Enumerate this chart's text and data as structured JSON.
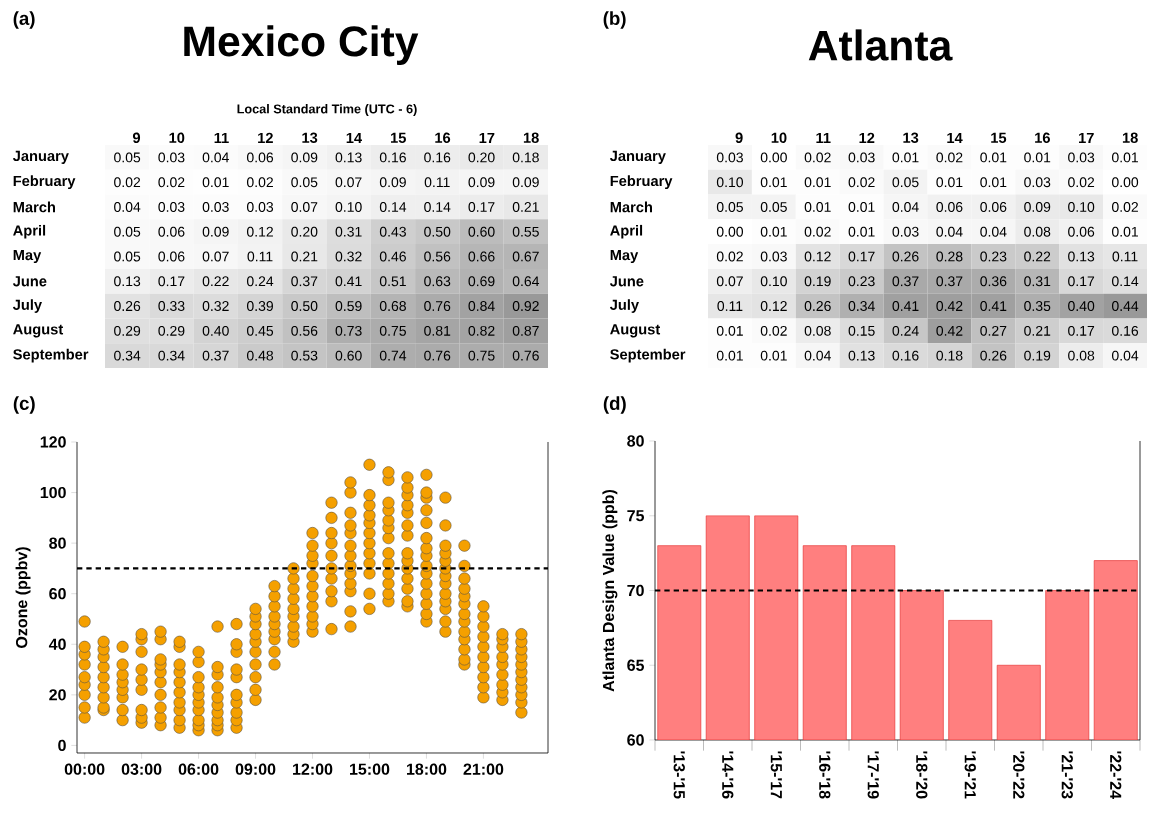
{
  "chart_data": [
    {
      "type": "heatmap",
      "title": "Mexico City",
      "xlabel": "Local Standard Time (UTC - 6)",
      "annotations": [
        "(a)"
      ],
      "color": "#999999",
      "categories": [
        "9",
        "10",
        "11",
        "12",
        "13",
        "14",
        "15",
        "16",
        "17",
        "18"
      ],
      "y_categories": [
        "January",
        "February",
        "March",
        "April",
        "May",
        "June",
        "July",
        "August",
        "September"
      ],
      "cells": [
        [
          0.05,
          0.03,
          0.04,
          0.06,
          0.09,
          0.13,
          0.16,
          0.16,
          0.2,
          0.18
        ],
        [
          0.02,
          0.02,
          0.01,
          0.02,
          0.05,
          0.07,
          0.09,
          0.11,
          0.09,
          0.09
        ],
        [
          0.04,
          0.03,
          0.03,
          0.03,
          0.07,
          0.1,
          0.14,
          0.14,
          0.17,
          0.21
        ],
        [
          0.05,
          0.06,
          0.09,
          0.12,
          0.2,
          0.31,
          0.43,
          0.5,
          0.6,
          0.55
        ],
        [
          0.05,
          0.06,
          0.07,
          0.11,
          0.21,
          0.32,
          0.46,
          0.56,
          0.66,
          0.67
        ],
        [
          0.13,
          0.17,
          0.22,
          0.24,
          0.37,
          0.41,
          0.51,
          0.63,
          0.69,
          0.64
        ],
        [
          0.26,
          0.33,
          0.32,
          0.39,
          0.5,
          0.59,
          0.68,
          0.76,
          0.84,
          0.92
        ],
        [
          0.29,
          0.29,
          0.4,
          0.45,
          0.56,
          0.73,
          0.75,
          0.81,
          0.82,
          0.87
        ],
        [
          0.34,
          0.34,
          0.37,
          0.48,
          0.53,
          0.6,
          0.74,
          0.76,
          0.75,
          0.76
        ]
      ],
      "cell_labels": [
        [
          "0.05",
          "0.03",
          "0.04",
          "0.06",
          "0.09",
          "0.13",
          "0.16",
          "0.16",
          "0.20",
          "0.18"
        ],
        [
          "0.02",
          "0.02",
          "0.01",
          "0.02",
          "0.05",
          "0.07",
          "0.09",
          "0.11",
          "0.09",
          "0.09"
        ],
        [
          "0.04",
          "0.03",
          "0.03",
          "0.03",
          "0.07",
          "0.10",
          "0.14",
          "0.14",
          "0.17",
          "0.21"
        ],
        [
          "0.05",
          "0.06",
          "0.09",
          "0.12",
          "0.20",
          "0.31",
          "0.43",
          "0.50",
          "0.60",
          "0.55"
        ],
        [
          "0.05",
          "0.06",
          "0.07",
          "0.11",
          "0.21",
          "0.32",
          "0.46",
          "0.56",
          "0.66",
          "0.67"
        ],
        [
          "0.13",
          "0.17",
          "0.22",
          "0.24",
          "0.37",
          "0.41",
          "0.51",
          "0.63",
          "0.69",
          "0.64"
        ],
        [
          "0.26",
          "0.33",
          "0.32",
          "0.39",
          "0.50",
          "0.59",
          "0.68",
          "0.76",
          "0.84",
          "0.92"
        ],
        [
          "0.29",
          "0.29",
          "0.40",
          "0.45",
          "0.56",
          "0.73",
          "0.75",
          "0.81",
          "0.82",
          "0.87"
        ],
        [
          "0.34",
          "0.34",
          "0.37",
          "0.48",
          "0.53",
          "0.60",
          "0.74",
          "0.76",
          "0.75",
          "0.76"
        ]
      ]
    },
    {
      "type": "heatmap",
      "title": "Atlanta",
      "annotations": [
        "(b)"
      ],
      "color": "#999999",
      "categories": [
        "9",
        "10",
        "11",
        "12",
        "13",
        "14",
        "15",
        "16",
        "17",
        "18"
      ],
      "y_categories": [
        "January",
        "February",
        "March",
        "April",
        "May",
        "June",
        "July",
        "August",
        "September"
      ],
      "cells": [
        [
          0.03,
          0.0,
          0.02,
          0.03,
          0.01,
          0.02,
          0.01,
          0.01,
          0.03,
          0.01
        ],
        [
          0.1,
          0.01,
          0.01,
          0.02,
          0.05,
          0.01,
          0.01,
          0.03,
          0.02,
          0.0
        ],
        [
          0.05,
          0.05,
          0.01,
          0.01,
          0.04,
          0.06,
          0.06,
          0.09,
          0.1,
          0.02
        ],
        [
          0.0,
          0.01,
          0.02,
          0.01,
          0.03,
          0.04,
          0.04,
          0.08,
          0.06,
          0.01
        ],
        [
          0.02,
          0.03,
          0.12,
          0.17,
          0.26,
          0.28,
          0.23,
          0.22,
          0.13,
          0.11
        ],
        [
          0.07,
          0.1,
          0.19,
          0.23,
          0.37,
          0.37,
          0.36,
          0.31,
          0.17,
          0.14
        ],
        [
          0.11,
          0.12,
          0.26,
          0.34,
          0.41,
          0.42,
          0.41,
          0.35,
          0.4,
          0.44
        ],
        [
          0.01,
          0.02,
          0.08,
          0.15,
          0.24,
          0.42,
          0.27,
          0.21,
          0.17,
          0.16
        ],
        [
          0.01,
          0.01,
          0.04,
          0.13,
          0.16,
          0.18,
          0.26,
          0.19,
          0.08,
          0.04
        ]
      ],
      "cell_labels": [
        [
          "0.03",
          "0.00",
          "0.02",
          "0.03",
          "0.01",
          "0.02",
          "0.01",
          "0.01",
          "0.03",
          "0.01"
        ],
        [
          "0.10",
          "0.01",
          "0.01",
          "0.02",
          "0.05",
          "0.01",
          "0.01",
          "0.03",
          "0.02",
          "0.00"
        ],
        [
          "0.05",
          "0.05",
          "0.01",
          "0.01",
          "0.04",
          "0.06",
          "0.06",
          "0.09",
          "0.10",
          "0.02"
        ],
        [
          "0.00",
          "0.01",
          "0.02",
          "0.01",
          "0.03",
          "0.04",
          "0.04",
          "0.08",
          "0.06",
          "0.01"
        ],
        [
          "0.02",
          "0.03",
          "0.12",
          "0.17",
          "0.26",
          "0.28",
          "0.23",
          "0.22",
          "0.13",
          "0.11"
        ],
        [
          "0.07",
          "0.10",
          "0.19",
          "0.23",
          "0.37",
          "0.37",
          "0.36",
          "0.31",
          "0.17",
          "0.14"
        ],
        [
          "0.11",
          "0.12",
          "0.26",
          "0.34",
          "0.41",
          "0.42",
          "0.41",
          "0.35",
          "0.40",
          "0.44"
        ],
        [
          "0.01",
          "0.02",
          "0.08",
          "0.15",
          "0.24",
          "0.42",
          "0.27",
          "0.21",
          "0.17",
          "0.16"
        ],
        [
          "0.01",
          "0.01",
          "0.04",
          "0.13",
          "0.16",
          "0.18",
          "0.26",
          "0.19",
          "0.08",
          "0.04"
        ]
      ]
    },
    {
      "type": "scatter",
      "ylabel": "Ozone (ppbv)",
      "annotations": [
        "(c)"
      ],
      "color": "#f5a000",
      "marker": "circle",
      "xlim": [
        -0.4,
        24.4
      ],
      "ylim": [
        -3,
        120
      ],
      "xticks": [
        {
          "value": 0,
          "label": "00:00"
        },
        {
          "value": 3,
          "label": "03:00"
        },
        {
          "value": 6,
          "label": "06:00"
        },
        {
          "value": 9,
          "label": "09:00"
        },
        {
          "value": 12,
          "label": "12:00"
        },
        {
          "value": 15,
          "label": "15:00"
        },
        {
          "value": 18,
          "label": "18:00"
        },
        {
          "value": 21,
          "label": "21:00"
        }
      ],
      "yticks": [
        0,
        20,
        40,
        60,
        80,
        100,
        120
      ],
      "ref_lines": [
        {
          "axis": "y",
          "value": 70,
          "line_style": "dashed",
          "color": "#000000"
        }
      ],
      "x": [
        0,
        0,
        0,
        0,
        0,
        0,
        0,
        0,
        0,
        1,
        1,
        1,
        1,
        1,
        1,
        1,
        1,
        1,
        2,
        2,
        2,
        2,
        2,
        2,
        2,
        2,
        3,
        3,
        3,
        3,
        3,
        3,
        3,
        3,
        3,
        4,
        4,
        4,
        4,
        4,
        4,
        4,
        4,
        4,
        4,
        5,
        5,
        5,
        5,
        5,
        5,
        5,
        5,
        5,
        5,
        6,
        6,
        6,
        6,
        6,
        6,
        6,
        6,
        6,
        6,
        7,
        7,
        7,
        7,
        7,
        7,
        7,
        7,
        7,
        7,
        8,
        8,
        8,
        8,
        8,
        8,
        8,
        8,
        8,
        8,
        9,
        9,
        9,
        9,
        9,
        9,
        9,
        9,
        9,
        9,
        10,
        10,
        10,
        10,
        10,
        10,
        10,
        10,
        10,
        11,
        11,
        11,
        11,
        11,
        11,
        11,
        11,
        11,
        12,
        12,
        12,
        12,
        12,
        12,
        12,
        12,
        12,
        12,
        12,
        13,
        13,
        13,
        13,
        13,
        13,
        13,
        13,
        13,
        13,
        14,
        14,
        14,
        14,
        14,
        14,
        14,
        14,
        14,
        14,
        14,
        14,
        14,
        15,
        15,
        15,
        15,
        15,
        15,
        15,
        15,
        15,
        15,
        15,
        15,
        16,
        16,
        16,
        16,
        16,
        16,
        16,
        16,
        16,
        16,
        16,
        16,
        16,
        17,
        17,
        17,
        17,
        17,
        17,
        17,
        17,
        17,
        17,
        17,
        17,
        17,
        17,
        18,
        18,
        18,
        18,
        18,
        18,
        18,
        18,
        18,
        18,
        18,
        18,
        18,
        18,
        18,
        19,
        19,
        19,
        19,
        19,
        19,
        19,
        19,
        19,
        19,
        19,
        19,
        19,
        20,
        20,
        20,
        20,
        20,
        20,
        20,
        20,
        20,
        20,
        20,
        20,
        20,
        21,
        21,
        21,
        21,
        21,
        21,
        21,
        21,
        21,
        21,
        22,
        22,
        22,
        22,
        22,
        22,
        22,
        22,
        22,
        23,
        23,
        23,
        23,
        23,
        23,
        23,
        23,
        23,
        23,
        23
      ],
      "values": [
        11,
        15,
        20,
        24,
        27,
        32,
        36,
        39,
        49,
        14,
        15,
        19,
        23,
        27,
        31,
        35,
        38,
        41,
        10,
        14,
        19,
        22,
        25,
        28,
        32,
        39,
        9,
        11,
        14,
        22,
        26,
        30,
        37,
        42,
        44,
        8,
        11,
        15,
        20,
        25,
        29,
        32,
        34,
        42,
        45,
        7,
        10,
        14,
        17,
        21,
        25,
        29,
        32,
        39,
        41,
        6,
        8,
        10,
        14,
        17,
        20,
        23,
        27,
        33,
        37,
        6,
        8,
        10,
        13,
        16,
        19,
        23,
        28,
        31,
        47,
        7,
        10,
        13,
        17,
        20,
        27,
        30,
        37,
        40,
        48,
        18,
        22,
        27,
        32,
        37,
        41,
        44,
        48,
        51,
        54,
        32,
        37,
        42,
        45,
        48,
        51,
        55,
        59,
        63,
        41,
        44,
        47,
        51,
        54,
        58,
        62,
        66,
        70,
        45,
        48,
        51,
        55,
        59,
        63,
        67,
        72,
        75,
        79,
        84,
        46,
        57,
        61,
        66,
        70,
        75,
        80,
        84,
        90,
        96,
        47,
        53,
        61,
        64,
        68,
        71,
        75,
        79,
        84,
        87,
        92,
        100,
        104,
        54,
        60,
        68,
        72,
        76,
        80,
        84,
        88,
        91,
        95,
        99,
        111,
        57,
        60,
        64,
        68,
        72,
        76,
        82,
        86,
        89,
        93,
        96,
        105,
        108,
        55,
        57,
        62,
        66,
        70,
        73,
        76,
        83,
        87,
        92,
        95,
        99,
        102,
        106,
        49,
        52,
        56,
        60,
        64,
        68,
        71,
        75,
        78,
        82,
        88,
        93,
        98,
        100,
        107,
        45,
        49,
        54,
        57,
        60,
        64,
        67,
        70,
        73,
        76,
        79,
        87,
        98,
        32,
        34,
        38,
        42,
        45,
        49,
        52,
        56,
        59,
        62,
        66,
        71,
        79,
        19,
        23,
        27,
        31,
        35,
        39,
        43,
        47,
        51,
        55,
        18,
        21,
        24,
        28,
        32,
        35,
        39,
        42,
        44,
        13,
        17,
        20,
        23,
        26,
        29,
        32,
        35,
        38,
        41,
        44
      ]
    },
    {
      "type": "bar",
      "ylabel": "Atlanta Design Value (ppb)",
      "annotations": [
        "(d)"
      ],
      "color": "#ff7f7f",
      "categories": [
        "'13-'15",
        "'14-'16",
        "'15-'17",
        "'16-'18",
        "'17-'19",
        "'18-'20",
        "'19-'21",
        "'20-'22",
        "'21-'23",
        "'22-'24"
      ],
      "values": [
        73,
        75,
        75,
        73,
        73,
        70,
        68,
        65,
        70,
        72
      ],
      "ylim": [
        60,
        80
      ],
      "yticks": [
        60,
        65,
        70,
        75,
        80
      ],
      "ref_lines": [
        {
          "axis": "y",
          "value": 70,
          "line_style": "dashed",
          "color": "#000000"
        }
      ]
    }
  ]
}
